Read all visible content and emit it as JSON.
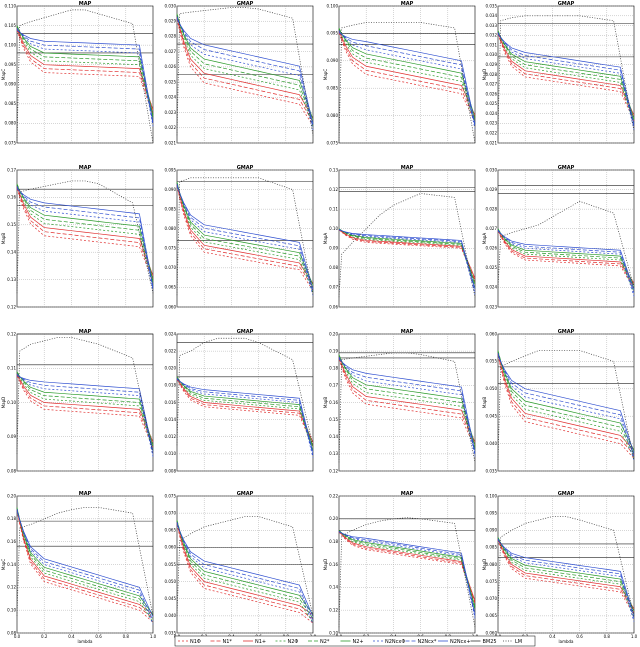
{
  "legend": {
    "entries": [
      {
        "label": "N1Φ",
        "color": "#e03030",
        "dash": "2,2"
      },
      {
        "label": "N1*",
        "color": "#e03030",
        "dash": "4,2"
      },
      {
        "label": "N1+",
        "color": "#e03030",
        "dash": ""
      },
      {
        "label": "N2Φ",
        "color": "#2a9a2a",
        "dash": "2,2"
      },
      {
        "label": "N2*",
        "color": "#2a9a2a",
        "dash": "4,2"
      },
      {
        "label": "N2+",
        "color": "#2a9a2a",
        "dash": ""
      },
      {
        "label": "N2NcxΦ",
        "color": "#3050d0",
        "dash": "2,2"
      },
      {
        "label": "N2Ncx*",
        "color": "#3050d0",
        "dash": "4,2"
      },
      {
        "label": "N2Ncx+",
        "color": "#3050d0",
        "dash": ""
      },
      {
        "label": "BM25",
        "color": "#333333",
        "dash": ""
      },
      {
        "label": "LM",
        "color": "#333333",
        "dash": "1,1.5"
      }
    ]
  },
  "chart_data": [
    {
      "type": "line",
      "title": "MAP",
      "xlabel": "",
      "ylabel": "MapC",
      "ylim": [
        0.075,
        0.11
      ],
      "yticks": [
        "0.075",
        "0.080",
        "0.085",
        "0.090",
        "0.095",
        "0.100",
        "0.105",
        "0.110"
      ],
      "xticks": [],
      "hlines": [
        0.103,
        0.098
      ],
      "lm": [
        0.075,
        0.105,
        0.106,
        0.107,
        0.108,
        0.109,
        0.109,
        0.108,
        0.1055,
        0.075
      ],
      "start": 0.105,
      "mid": 0.097,
      "end": 0.096,
      "spread": 0.008,
      "series": []
    },
    {
      "type": "line",
      "title": "GMAP",
      "xlabel": "",
      "ylabel": "",
      "ylim": [
        0.021,
        0.03
      ],
      "yticks": [
        "0.021",
        "0.022",
        "0.023",
        "0.024",
        "0.025",
        "0.026",
        "0.027",
        "0.028",
        "0.029",
        "0.030"
      ],
      "xticks": [],
      "hlines": [
        0.0275,
        0.0255
      ],
      "lm": [
        0.0215,
        0.0295,
        0.0296,
        0.0297,
        0.0298,
        0.0299,
        0.0299,
        0.0298,
        0.0292,
        0.0215
      ],
      "start": 0.0295,
      "mid": 0.0262,
      "end": 0.0248,
      "spread": 0.0025,
      "series": []
    },
    {
      "type": "line",
      "title": "MAP",
      "xlabel": "",
      "ylabel": "MapC",
      "ylim": [
        0.075,
        0.1
      ],
      "yticks": [
        "0.075",
        "0.080",
        "0.085",
        "0.090",
        "0.095",
        "0.100"
      ],
      "xticks": [],
      "hlines": [
        0.095,
        0.093
      ],
      "lm": [
        0.075,
        0.096,
        0.0965,
        0.097,
        0.097,
        0.097,
        0.097,
        0.097,
        0.096,
        0.075
      ],
      "start": 0.096,
      "mid": 0.0905,
      "end": 0.087,
      "spread": 0.006,
      "series": []
    },
    {
      "type": "line",
      "title": "GMAP",
      "xlabel": "",
      "ylabel": "MapD",
      "ylim": [
        0.021,
        0.035
      ],
      "yticks": [
        "0.021",
        "0.022",
        "0.023",
        "0.024",
        "0.025",
        "0.026",
        "0.027",
        "0.028",
        "0.029",
        "0.030",
        "0.031",
        "0.032",
        "0.033",
        "0.034",
        "0.035"
      ],
      "xticks": [],
      "hlines": [
        0.0332,
        0.0298
      ],
      "lm": [
        0.0222,
        0.0335,
        0.0338,
        0.034,
        0.034,
        0.034,
        0.034,
        0.034,
        0.0335,
        0.0222
      ],
      "start": 0.0325,
      "mid": 0.029,
      "end": 0.0275,
      "spread": 0.0025,
      "series": []
    },
    {
      "type": "line",
      "title": "MAP",
      "xlabel": "",
      "ylabel": "MapB",
      "ylim": [
        0.12,
        0.17
      ],
      "yticks": [
        "0.12",
        "0.13",
        "0.14",
        "0.15",
        "0.16",
        "0.17"
      ],
      "xticks": [],
      "hlines": [
        0.163,
        0.157
      ],
      "lm": [
        0.125,
        0.162,
        0.163,
        0.164,
        0.165,
        0.166,
        0.166,
        0.165,
        0.158,
        0.125
      ],
      "start": 0.165,
      "mid": 0.152,
      "end": 0.148,
      "spread": 0.012,
      "series": []
    },
    {
      "type": "line",
      "title": "GMAP",
      "xlabel": "",
      "ylabel": "",
      "ylim": [
        0.06,
        0.095
      ],
      "yticks": [
        "0.060",
        "0.065",
        "0.070",
        "0.075",
        "0.080",
        "0.085",
        "0.090",
        "0.095"
      ],
      "xticks": [],
      "hlines": [
        0.092,
        0.077
      ],
      "lm": [
        0.063,
        0.092,
        0.093,
        0.093,
        0.093,
        0.093,
        0.093,
        0.093,
        0.09,
        0.063
      ],
      "start": 0.092,
      "mid": 0.0775,
      "end": 0.073,
      "spread": 0.007,
      "series": []
    },
    {
      "type": "line",
      "title": "MAP",
      "xlabel": "",
      "ylabel": "MapA",
      "ylim": [
        0.06,
        0.13
      ],
      "yticks": [
        "0.06",
        "0.07",
        "0.08",
        "0.09",
        "0.10",
        "0.11",
        "0.12",
        "0.13"
      ],
      "xticks": [],
      "hlines": [
        0.121,
        0.119
      ],
      "lm": [
        0.065,
        0.087,
        0.093,
        0.1,
        0.107,
        0.112,
        0.115,
        0.118,
        0.116,
        0.065
      ],
      "start": 0.1,
      "mid": 0.095,
      "end": 0.092,
      "spread": 0.004,
      "series": []
    },
    {
      "type": "line",
      "title": "GMAP",
      "xlabel": "",
      "ylabel": "MapA",
      "ylim": [
        0.023,
        0.03
      ],
      "yticks": [
        "0.023",
        "0.024",
        "0.025",
        "0.026",
        "0.027",
        "0.028",
        "0.029",
        "0.030"
      ],
      "xticks": [],
      "hlines": [
        0.0292,
        0.0288
      ],
      "lm": [
        0.024,
        0.0266,
        0.0268,
        0.027,
        0.0272,
        0.0276,
        0.028,
        0.0284,
        0.0278,
        0.024
      ],
      "start": 0.027,
      "mid": 0.0258,
      "end": 0.0255,
      "spread": 0.0008,
      "series": []
    },
    {
      "type": "line",
      "title": "MAP",
      "xlabel": "",
      "ylabel": "MapD",
      "ylim": [
        0.08,
        0.12
      ],
      "yticks": [
        "0.08",
        "0.09",
        "0.10",
        "0.11",
        "0.12"
      ],
      "xticks": [],
      "hlines": [
        0.12,
        0.111
      ],
      "lm": [
        0.085,
        0.115,
        0.117,
        0.118,
        0.119,
        0.119,
        0.118,
        0.117,
        0.113,
        0.085
      ],
      "start": 0.109,
      "mid": 0.102,
      "end": 0.1,
      "spread": 0.008,
      "series": []
    },
    {
      "type": "line",
      "title": "GMAP",
      "xlabel": "",
      "ylabel": "",
      "ylim": [
        0.008,
        0.024
      ],
      "yticks": [
        "0.008",
        "0.010",
        "0.012",
        "0.014",
        "0.016",
        "0.018",
        "0.020",
        "0.022",
        "0.024"
      ],
      "xticks": [],
      "hlines": [
        0.023,
        0.019
      ],
      "lm": [
        0.011,
        0.0215,
        0.022,
        0.023,
        0.0235,
        0.0235,
        0.0235,
        0.023,
        0.021,
        0.011
      ],
      "start": 0.019,
      "mid": 0.0165,
      "end": 0.0155,
      "spread": 0.002,
      "series": []
    },
    {
      "type": "line",
      "title": "MAP",
      "xlabel": "",
      "ylabel": "MapB",
      "ylim": [
        0.12,
        0.2
      ],
      "yticks": [
        "0.12",
        "0.13",
        "0.14",
        "0.15",
        "0.16",
        "0.17",
        "0.18",
        "0.19",
        "0.20"
      ],
      "xticks": [],
      "hlines": [
        0.189,
        0.186
      ],
      "lm": [
        0.125,
        0.185,
        0.186,
        0.187,
        0.188,
        0.189,
        0.189,
        0.188,
        0.184,
        0.125
      ],
      "start": 0.188,
      "mid": 0.168,
      "end": 0.16,
      "spread": 0.018,
      "series": []
    },
    {
      "type": "line",
      "title": "GMAP",
      "xlabel": "",
      "ylabel": "MapB",
      "ylim": [
        0.035,
        0.06
      ],
      "yticks": [
        "0.035",
        "0.040",
        "0.045",
        "0.050",
        "0.055",
        "0.060"
      ],
      "xticks": [],
      "hlines": [
        0.054,
        0.051
      ],
      "lm": [
        0.037,
        0.054,
        0.055,
        0.056,
        0.057,
        0.057,
        0.057,
        0.057,
        0.055,
        0.037
      ],
      "start": 0.057,
      "mid": 0.047,
      "end": 0.043,
      "spread": 0.006,
      "series": []
    },
    {
      "type": "line",
      "title": "MAP",
      "xlabel": "lambda",
      "ylabel": "MapC",
      "ylim": [
        0.08,
        0.2
      ],
      "yticks": [
        "0.08",
        "0.10",
        "0.12",
        "0.14",
        "0.16",
        "0.18",
        "0.20"
      ],
      "xticks": [
        "0.0",
        "0.2",
        "0.4",
        "0.6",
        "0.8",
        "1.0"
      ],
      "hlines": [
        0.178,
        0.156
      ],
      "lm": [
        0.095,
        0.172,
        0.175,
        0.18,
        0.185,
        0.188,
        0.19,
        0.19,
        0.185,
        0.095
      ],
      "start": 0.19,
      "mid": 0.135,
      "end": 0.11,
      "spread": 0.02,
      "series": []
    },
    {
      "type": "line",
      "title": "GMAP",
      "xlabel": "lambda",
      "ylabel": "",
      "ylim": [
        0.035,
        0.075
      ],
      "yticks": [
        "0.035",
        "0.040",
        "0.045",
        "0.050",
        "0.055",
        "0.060",
        "0.065",
        "0.070",
        "0.075"
      ],
      "xticks": [
        "0.0",
        "0.2",
        "0.4",
        "0.6",
        "0.8",
        "1.0"
      ],
      "hlines": [
        0.06,
        0.055
      ],
      "lm": [
        0.04,
        0.062,
        0.064,
        0.066,
        0.067,
        0.068,
        0.069,
        0.069,
        0.066,
        0.04
      ],
      "start": 0.068,
      "mid": 0.052,
      "end": 0.045,
      "spread": 0.008,
      "series": []
    },
    {
      "type": "line",
      "title": "MAP",
      "xlabel": "lambda",
      "ylabel": "MapD",
      "ylim": [
        0.1,
        0.22
      ],
      "yticks": [
        "0.10",
        "0.12",
        "0.14",
        "0.16",
        "0.18",
        "0.20",
        "0.22"
      ],
      "xticks": [
        "0.0",
        "0.2",
        "0.4",
        "0.6",
        "0.8",
        "1.0"
      ],
      "hlines": [
        0.2,
        0.19
      ],
      "lm": [
        0.105,
        0.185,
        0.19,
        0.195,
        0.198,
        0.2,
        0.201,
        0.2,
        0.196,
        0.105
      ],
      "start": 0.19,
      "mid": 0.178,
      "end": 0.165,
      "spread": 0.01,
      "series": []
    },
    {
      "type": "line",
      "title": "GMAP",
      "xlabel": "lambda",
      "ylabel": "MapD",
      "ylim": [
        0.06,
        0.1
      ],
      "yticks": [
        "0.060",
        "0.065",
        "0.070",
        "0.075",
        "0.080",
        "0.085",
        "0.090",
        "0.095",
        "0.100"
      ],
      "xticks": [
        "0.0",
        "0.2",
        "0.4",
        "0.6",
        "0.8",
        "1.0"
      ],
      "hlines": [
        0.086,
        0.082
      ],
      "lm": [
        0.065,
        0.088,
        0.09,
        0.092,
        0.093,
        0.094,
        0.094,
        0.093,
        0.09,
        0.065
      ],
      "start": 0.088,
      "mid": 0.079,
      "end": 0.075,
      "spread": 0.006,
      "series": []
    }
  ]
}
